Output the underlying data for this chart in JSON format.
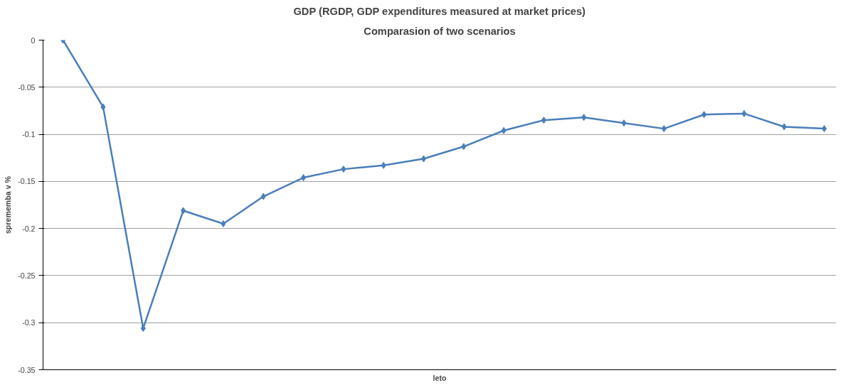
{
  "chart_data": {
    "type": "line",
    "title": "GDP (RGDP, GDP expenditures measured at market prices)",
    "subtitle": "Comparasion of two scenarios",
    "xlabel": "leto",
    "ylabel": "sprememba v %",
    "categories": [
      null,
      null,
      null,
      null,
      null,
      null,
      null,
      null,
      null,
      null,
      null,
      null,
      null,
      null,
      null,
      null,
      null,
      null,
      null,
      null
    ],
    "series": [
      {
        "color": "#4a7ebb",
        "values": [
          0,
          -0.071,
          -0.306,
          -0.181,
          -0.195,
          -0.166,
          -0.146,
          -0.137,
          -0.133,
          -0.126,
          -0.113,
          -0.096,
          -0.085,
          -0.082,
          -0.088,
          -0.094,
          -0.079,
          -0.078,
          -0.092,
          -0.094
        ]
      }
    ],
    "ylim": [
      -0.35,
      0
    ],
    "yticks": [
      0,
      -0.05,
      -0.1,
      -0.15,
      -0.2,
      -0.25,
      -0.3,
      -0.35
    ],
    "grid": "y",
    "marker": "diamond",
    "line_style": "solid"
  }
}
